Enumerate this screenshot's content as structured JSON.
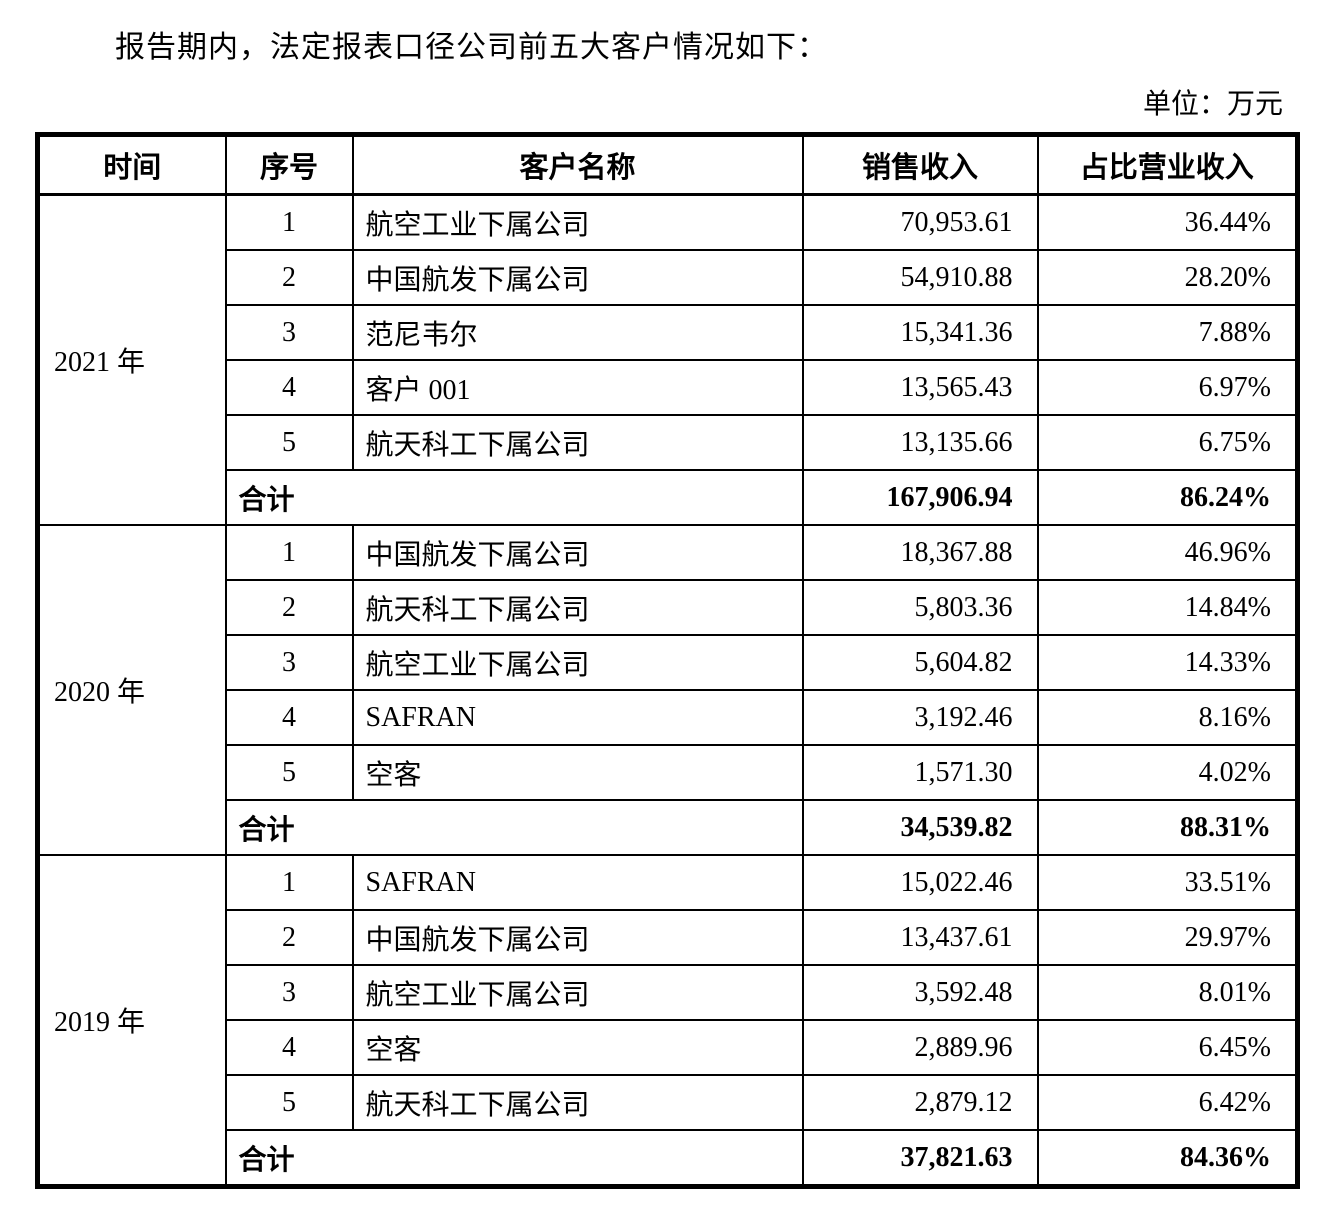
{
  "page": {
    "intro": "报告期内，法定报表口径公司前五大客户情况如下：",
    "unit_label": "单位：万元"
  },
  "table": {
    "headers": [
      "时间",
      "序号",
      "客户名称",
      "销售收入",
      "占比营业收入"
    ],
    "total_label": "合计",
    "groups": [
      {
        "period": "2021 年",
        "rows": [
          {
            "rank": "1",
            "customer": "航空工业下属公司",
            "revenue": "70,953.61",
            "share": "36.44%"
          },
          {
            "rank": "2",
            "customer": "中国航发下属公司",
            "revenue": "54,910.88",
            "share": "28.20%"
          },
          {
            "rank": "3",
            "customer": "范尼韦尔",
            "revenue": "15,341.36",
            "share": "7.88%"
          },
          {
            "rank": "4",
            "customer": "客户 001",
            "revenue": "13,565.43",
            "share": "6.97%"
          },
          {
            "rank": "5",
            "customer": "航天科工下属公司",
            "revenue": "13,135.66",
            "share": "6.75%"
          }
        ],
        "total": {
          "revenue": "167,906.94",
          "share": "86.24%"
        }
      },
      {
        "period": "2020 年",
        "rows": [
          {
            "rank": "1",
            "customer": "中国航发下属公司",
            "revenue": "18,367.88",
            "share": "46.96%"
          },
          {
            "rank": "2",
            "customer": "航天科工下属公司",
            "revenue": "5,803.36",
            "share": "14.84%"
          },
          {
            "rank": "3",
            "customer": "航空工业下属公司",
            "revenue": "5,604.82",
            "share": "14.33%"
          },
          {
            "rank": "4",
            "customer": "SAFRAN",
            "revenue": "3,192.46",
            "share": "8.16%"
          },
          {
            "rank": "5",
            "customer": "空客",
            "revenue": "1,571.30",
            "share": "4.02%"
          }
        ],
        "total": {
          "revenue": "34,539.82",
          "share": "88.31%"
        }
      },
      {
        "period": "2019 年",
        "rows": [
          {
            "rank": "1",
            "customer": "SAFRAN",
            "revenue": "15,022.46",
            "share": "33.51%"
          },
          {
            "rank": "2",
            "customer": "中国航发下属公司",
            "revenue": "13,437.61",
            "share": "29.97%"
          },
          {
            "rank": "3",
            "customer": "航空工业下属公司",
            "revenue": "3,592.48",
            "share": "8.01%"
          },
          {
            "rank": "4",
            "customer": "空客",
            "revenue": "2,889.96",
            "share": "6.45%"
          },
          {
            "rank": "5",
            "customer": "航天科工下属公司",
            "revenue": "2,879.12",
            "share": "6.42%"
          }
        ],
        "total": {
          "revenue": "37,821.63",
          "share": "84.36%"
        }
      }
    ]
  }
}
